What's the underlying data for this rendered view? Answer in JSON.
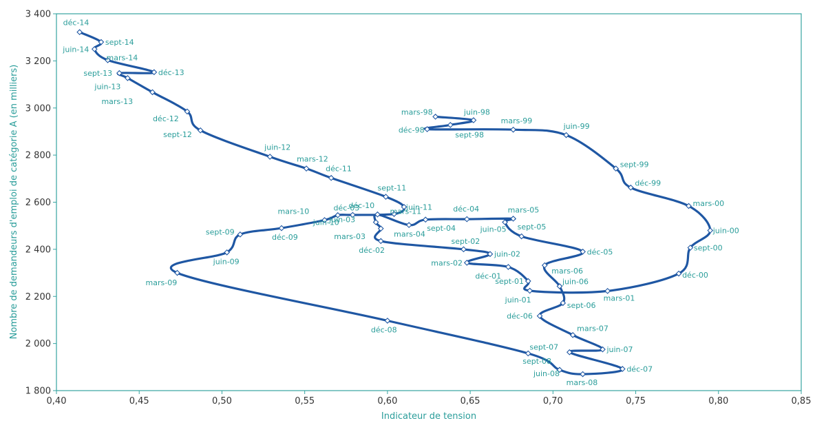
{
  "chart_data": {
    "type": "line",
    "xlabel": "Indicateur de tension",
    "ylabel": "Nombre de demandeurs d'emploi de catégorie A (en milliers)",
    "xlim": [
      0.4,
      0.85
    ],
    "ylim": [
      1800,
      3400
    ],
    "xticks": [
      0.4,
      0.45,
      0.5,
      0.55,
      0.6,
      0.65,
      0.7,
      0.75,
      0.8,
      0.85
    ],
    "yticks": [
      1800,
      2000,
      2200,
      2400,
      2600,
      2800,
      3000,
      3200,
      3400
    ],
    "xtick_labels": [
      "0,40",
      "0,45",
      "0,50",
      "0,55",
      "0,60",
      "0,65",
      "0,70",
      "0,75",
      "0,80",
      "0,85"
    ],
    "ytick_labels": [
      "1 800",
      "2 000",
      "2 200",
      "2 400",
      "2 600",
      "2 800",
      "3 000",
      "3 200",
      "3 400"
    ],
    "grid": false,
    "colors": {
      "line": "#1f57a3",
      "text": "#2a9d9a",
      "axis": "#35a3a0"
    },
    "series": [
      {
        "points": [
          {
            "label": "mars-98",
            "x": 0.629,
            "y": 2963
          },
          {
            "label": "juin-98",
            "x": 0.652,
            "y": 2948
          },
          {
            "label": "sept-98",
            "x": 0.638,
            "y": 2928
          },
          {
            "label": "déc-98",
            "x": 0.624,
            "y": 2910
          },
          {
            "label": "mars-99",
            "x": 0.676,
            "y": 2908
          },
          {
            "label": "juin-99",
            "x": 0.708,
            "y": 2885
          },
          {
            "label": "sept-99",
            "x": 0.738,
            "y": 2743
          },
          {
            "label": "déc-99",
            "x": 0.747,
            "y": 2662
          },
          {
            "label": "mars-00",
            "x": 0.782,
            "y": 2584
          },
          {
            "label": "juin-00",
            "x": 0.795,
            "y": 2480
          },
          {
            "label": "sept-00",
            "x": 0.783,
            "y": 2407
          },
          {
            "label": "déc-00",
            "x": 0.776,
            "y": 2297
          },
          {
            "label": "mars-01",
            "x": 0.733,
            "y": 2223
          },
          {
            "label": "juin-01",
            "x": 0.686,
            "y": 2224
          },
          {
            "label": "sept-01",
            "x": 0.685,
            "y": 2265
          },
          {
            "label": "déc-01",
            "x": 0.673,
            "y": 2325
          },
          {
            "label": "mars-02",
            "x": 0.648,
            "y": 2343
          },
          {
            "label": "juin-02",
            "x": 0.662,
            "y": 2380
          },
          {
            "label": "sept-02",
            "x": 0.646,
            "y": 2400
          },
          {
            "label": "déc-02",
            "x": 0.596,
            "y": 2435
          },
          {
            "label": "mars-03",
            "x": 0.596,
            "y": 2488
          },
          {
            "label": "juin-03",
            "x": 0.593,
            "y": 2515
          },
          {
            "label": "déc-03",
            "x": 0.594,
            "y": 2548
          },
          {
            "label": "mars-04",
            "x": 0.613,
            "y": 2503
          },
          {
            "label": "sept-04",
            "x": 0.623,
            "y": 2526
          },
          {
            "label": "déc-04",
            "x": 0.648,
            "y": 2528
          },
          {
            "label": "mars-05",
            "x": 0.676,
            "y": 2530
          },
          {
            "label": "juin-05",
            "x": 0.671,
            "y": 2515
          },
          {
            "label": "sept-05",
            "x": 0.681,
            "y": 2455
          },
          {
            "label": "déc-05",
            "x": 0.718,
            "y": 2390
          },
          {
            "label": "mars-06",
            "x": 0.695,
            "y": 2332
          },
          {
            "label": "juin-06",
            "x": 0.704,
            "y": 2243
          },
          {
            "label": "sept-06",
            "x": 0.706,
            "y": 2172
          },
          {
            "label": "déc-06",
            "x": 0.692,
            "y": 2117
          },
          {
            "label": "mars-07",
            "x": 0.712,
            "y": 2036
          },
          {
            "label": "juin-07",
            "x": 0.73,
            "y": 1975
          },
          {
            "label": "sept-07",
            "x": 0.71,
            "y": 1963
          },
          {
            "label": "déc-07",
            "x": 0.742,
            "y": 1892
          },
          {
            "label": "mars-08",
            "x": 0.718,
            "y": 1870
          },
          {
            "label": "juin-08",
            "x": 0.704,
            "y": 1888
          },
          {
            "label": "sept-08",
            "x": 0.685,
            "y": 1958
          },
          {
            "label": "déc-08",
            "x": 0.6,
            "y": 2097
          },
          {
            "label": "mars-09",
            "x": 0.473,
            "y": 2300
          },
          {
            "label": "juin-09",
            "x": 0.503,
            "y": 2387
          },
          {
            "label": "sept-09",
            "x": 0.511,
            "y": 2463
          },
          {
            "label": "déc-09",
            "x": 0.536,
            "y": 2490
          },
          {
            "label": "mars-10",
            "x": 0.562,
            "y": 2524
          },
          {
            "label": "juin-10",
            "x": 0.57,
            "y": 2545
          },
          {
            "label": "déc-10",
            "x": 0.579,
            "y": 2546
          },
          {
            "label": "mars-11",
            "x": 0.604,
            "y": 2550
          },
          {
            "label": "juin-11",
            "x": 0.61,
            "y": 2580
          },
          {
            "label": "sept-11",
            "x": 0.599,
            "y": 2623
          },
          {
            "label": "déc-11",
            "x": 0.566,
            "y": 2703
          },
          {
            "label": "mars-12",
            "x": 0.551,
            "y": 2743
          },
          {
            "label": "juin-12",
            "x": 0.529,
            "y": 2793
          },
          {
            "label": "sept-12",
            "x": 0.487,
            "y": 2905
          },
          {
            "label": "déc-12",
            "x": 0.479,
            "y": 2985
          },
          {
            "label": "mars-13",
            "x": 0.458,
            "y": 3067
          },
          {
            "label": "juin-13",
            "x": 0.443,
            "y": 3127
          },
          {
            "label": "sept-13",
            "x": 0.438,
            "y": 3148
          },
          {
            "label": "déc-13",
            "x": 0.459,
            "y": 3152
          },
          {
            "label": "mars-14",
            "x": 0.431,
            "y": 3203
          },
          {
            "label": "juin-14",
            "x": 0.423,
            "y": 3250
          },
          {
            "label": "sept-14",
            "x": 0.427,
            "y": 3280
          },
          {
            "label": "déc-14",
            "x": 0.414,
            "y": 3322
          }
        ]
      }
    ]
  }
}
